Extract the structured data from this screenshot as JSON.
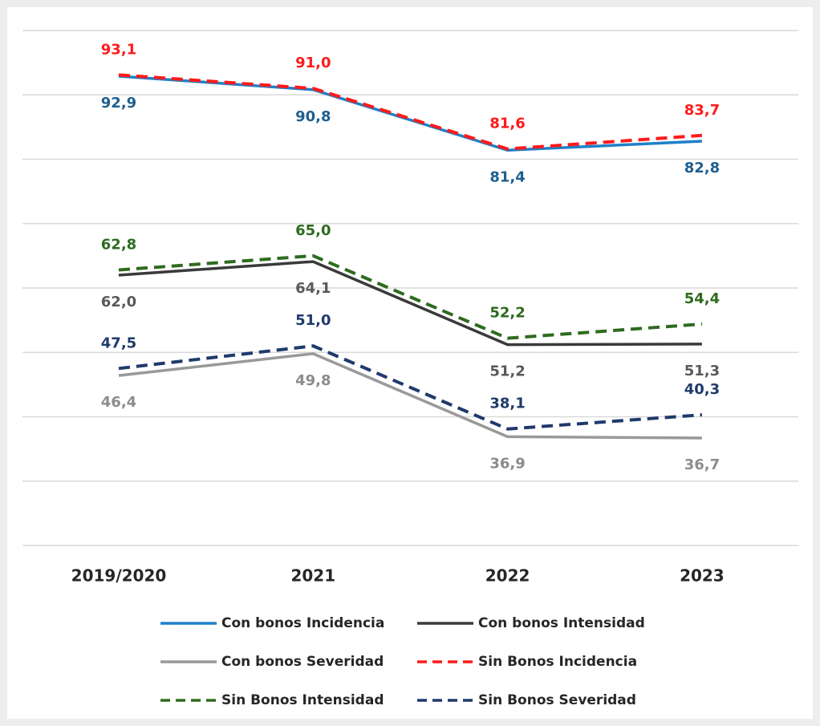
{
  "chart_data": {
    "type": "line",
    "categories": [
      "2019/2020",
      "2021",
      "2022",
      "2023"
    ],
    "ylim": [
      20,
      100
    ],
    "yticks": [
      20,
      30,
      40,
      50,
      60,
      70,
      80,
      90,
      100
    ],
    "grid": true,
    "series": [
      {
        "name": "Con bonos Incidencia",
        "color": "#1f80c8",
        "label_color": "#1f5f8f",
        "dashed": false,
        "label_position": "below",
        "values": [
          92.9,
          90.8,
          81.4,
          82.8
        ],
        "value_labels": [
          "92,9",
          "90,8",
          "81,4",
          "82,8"
        ]
      },
      {
        "name": "Con bonos Intensidad",
        "color": "#3a3a3a",
        "label_color": "#595959",
        "dashed": false,
        "label_position": "below",
        "values": [
          62.0,
          64.1,
          51.2,
          51.3
        ],
        "value_labels": [
          "62,0",
          "64,1",
          "51,2",
          "51,3"
        ]
      },
      {
        "name": "Con bonos Severidad",
        "color": "#999999",
        "label_color": "#8c8c8c",
        "dashed": false,
        "label_position": "below",
        "values": [
          46.4,
          49.8,
          36.9,
          36.7
        ],
        "value_labels": [
          "46,4",
          "49,8",
          "36,9",
          "36,7"
        ]
      },
      {
        "name": "Sin Bonos Incidencia",
        "color": "#ff1a1a",
        "label_color": "#ff1a1a",
        "dashed": true,
        "label_position": "above",
        "values": [
          93.1,
          91.0,
          81.6,
          83.7
        ],
        "value_labels": [
          "93,1",
          "91,0",
          "81,6",
          "83,7"
        ]
      },
      {
        "name": "Sin Bonos Intensidad",
        "color": "#2e6b1f",
        "label_color": "#2e6b1f",
        "dashed": true,
        "label_position": "above",
        "values": [
          62.8,
          65.0,
          52.2,
          54.4
        ],
        "value_labels": [
          "62,8",
          "65,0",
          "52,2",
          "54,4"
        ]
      },
      {
        "name": "Sin Bonos Severidad",
        "color": "#1f3a6b",
        "label_color": "#1f3a6b",
        "dashed": true,
        "label_position": "above",
        "values": [
          47.5,
          51.0,
          38.1,
          40.3
        ],
        "value_labels": [
          "47,5",
          "51,0",
          "38,1",
          "40,3"
        ]
      }
    ]
  }
}
